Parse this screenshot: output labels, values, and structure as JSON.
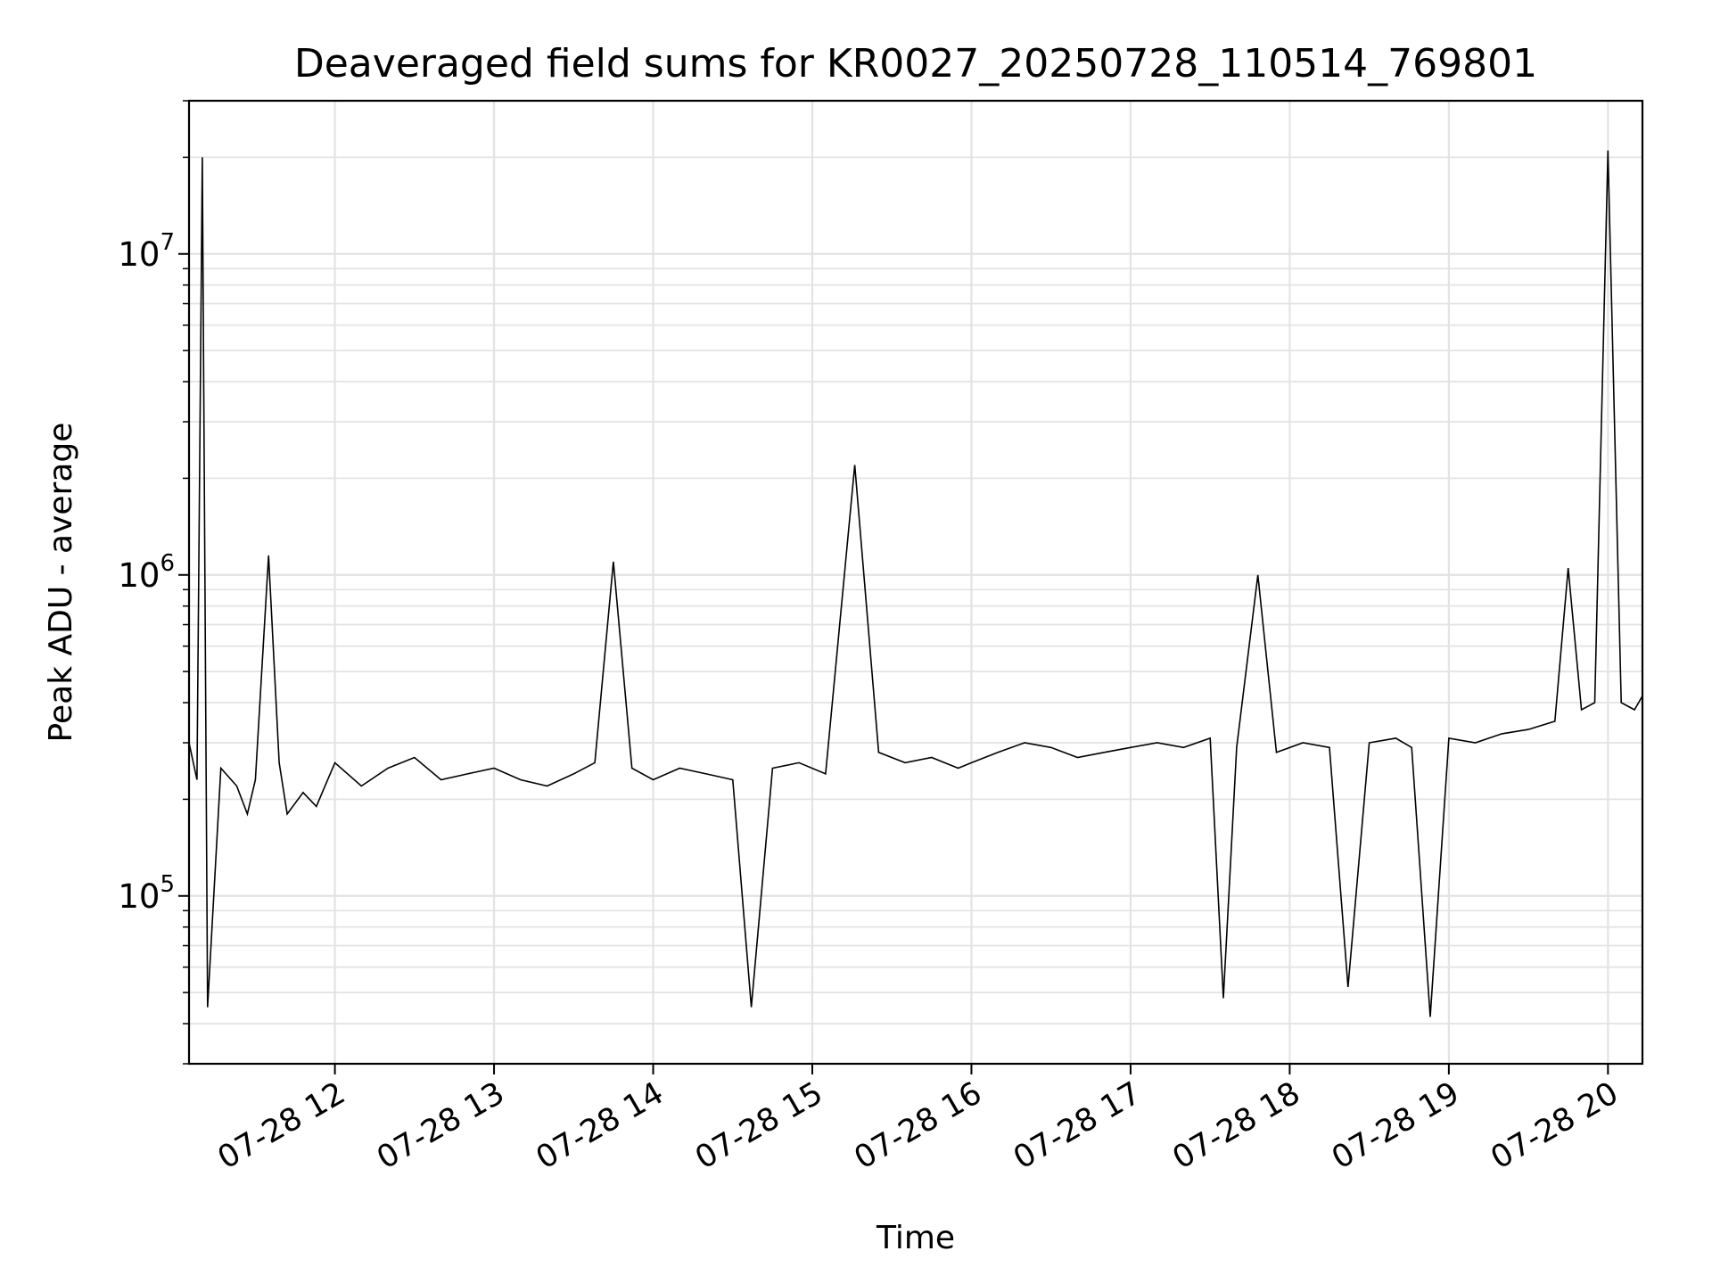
{
  "chart_data": {
    "type": "line",
    "title": "Deaveraged field sums for KR0027_20250728_110514_769801",
    "xlabel": "Time",
    "ylabel": "Peak ADU - average",
    "y_scale": "log",
    "ylim": [
      30000,
      30000000
    ],
    "xlim": [
      "2025-07-28 11:05",
      "2025-07-28 20:13"
    ],
    "x_ticks": [
      "2025-07-28 12:00",
      "2025-07-28 13:00",
      "2025-07-28 14:00",
      "2025-07-28 15:00",
      "2025-07-28 16:00",
      "2025-07-28 17:00",
      "2025-07-28 18:00",
      "2025-07-28 19:00",
      "2025-07-28 20:00"
    ],
    "x_tick_labels": [
      "07-28 12",
      "07-28 13",
      "07-28 14",
      "07-28 15",
      "07-28 16",
      "07-28 17",
      "07-28 18",
      "07-28 19",
      "07-28 20"
    ],
    "y_ticks": [
      {
        "base": "10",
        "exp": "5",
        "value": 100000
      },
      {
        "base": "10",
        "exp": "6",
        "value": 1000000
      },
      {
        "base": "10",
        "exp": "7",
        "value": 10000000
      }
    ],
    "grid": true,
    "line_color": "#000000",
    "series": [
      {
        "x": [
          "2025-07-28 11:05",
          "2025-07-28 11:08",
          "2025-07-28 11:10",
          "2025-07-28 11:12",
          "2025-07-28 11:17",
          "2025-07-28 11:23",
          "2025-07-28 11:27",
          "2025-07-28 11:30",
          "2025-07-28 11:35",
          "2025-07-28 11:39",
          "2025-07-28 11:42",
          "2025-07-28 11:48",
          "2025-07-28 11:53",
          "2025-07-28 12:00",
          "2025-07-28 12:10",
          "2025-07-28 12:20",
          "2025-07-28 12:30",
          "2025-07-28 12:40",
          "2025-07-28 12:50",
          "2025-07-28 13:00",
          "2025-07-28 13:10",
          "2025-07-28 13:20",
          "2025-07-28 13:30",
          "2025-07-28 13:38",
          "2025-07-28 13:45",
          "2025-07-28 13:52",
          "2025-07-28 14:00",
          "2025-07-28 14:10",
          "2025-07-28 14:20",
          "2025-07-28 14:30",
          "2025-07-28 14:37",
          "2025-07-28 14:45",
          "2025-07-28 14:55",
          "2025-07-28 15:05",
          "2025-07-28 15:16",
          "2025-07-28 15:25",
          "2025-07-28 15:35",
          "2025-07-28 15:45",
          "2025-07-28 15:55",
          "2025-07-28 16:00",
          "2025-07-28 16:10",
          "2025-07-28 16:20",
          "2025-07-28 16:30",
          "2025-07-28 16:40",
          "2025-07-28 16:50",
          "2025-07-28 17:00",
          "2025-07-28 17:10",
          "2025-07-28 17:20",
          "2025-07-28 17:30",
          "2025-07-28 17:35",
          "2025-07-28 17:40",
          "2025-07-28 17:48",
          "2025-07-28 17:55",
          "2025-07-28 18:05",
          "2025-07-28 18:15",
          "2025-07-28 18:22",
          "2025-07-28 18:30",
          "2025-07-28 18:40",
          "2025-07-28 18:46",
          "2025-07-28 18:53",
          "2025-07-28 19:00",
          "2025-07-28 19:10",
          "2025-07-28 19:20",
          "2025-07-28 19:30",
          "2025-07-28 19:40",
          "2025-07-28 19:45",
          "2025-07-28 19:50",
          "2025-07-28 19:55",
          "2025-07-28 20:00",
          "2025-07-28 20:05",
          "2025-07-28 20:10",
          "2025-07-28 20:13"
        ],
        "values": [
          300000,
          230000,
          20000000,
          45000,
          250000,
          220000,
          180000,
          230000,
          1150000,
          260000,
          180000,
          210000,
          190000,
          260000,
          220000,
          250000,
          270000,
          230000,
          240000,
          250000,
          230000,
          220000,
          240000,
          260000,
          1100000,
          250000,
          230000,
          250000,
          240000,
          230000,
          45000,
          250000,
          260000,
          240000,
          2200000,
          280000,
          260000,
          270000,
          250000,
          260000,
          280000,
          300000,
          290000,
          270000,
          280000,
          290000,
          300000,
          290000,
          310000,
          48000,
          290000,
          1000000,
          280000,
          300000,
          290000,
          52000,
          300000,
          310000,
          290000,
          42000,
          310000,
          300000,
          320000,
          330000,
          350000,
          1050000,
          380000,
          400000,
          21000000,
          400000,
          380000,
          420000
        ]
      }
    ]
  }
}
